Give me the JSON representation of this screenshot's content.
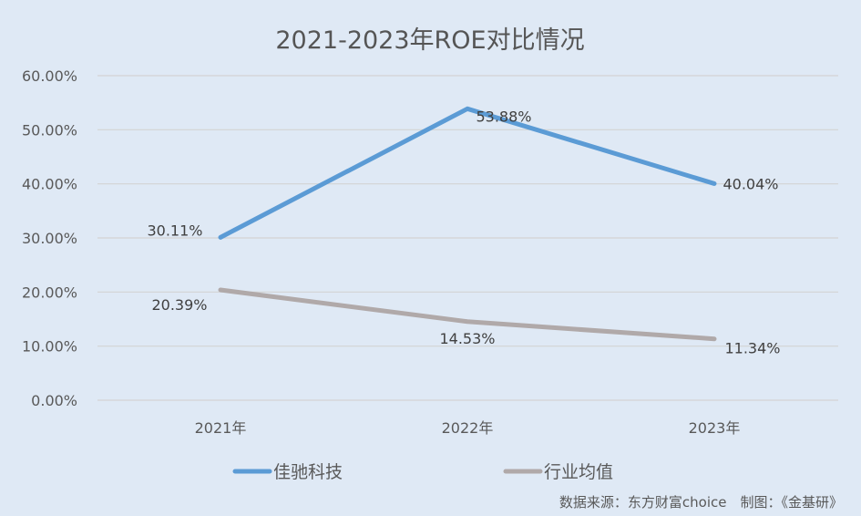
{
  "chart_data": {
    "type": "line",
    "title": "2021-2023年ROE对比情况",
    "categories": [
      "2021年",
      "2022年",
      "2023年"
    ],
    "series": [
      {
        "name": "佳驰科技",
        "values": [
          30.11,
          53.88,
          40.04
        ],
        "labels": [
          "30.11%",
          "53.88%",
          "40.04%"
        ],
        "color": "#5b9bd5"
      },
      {
        "name": "行业均值",
        "values": [
          20.39,
          14.53,
          11.34
        ],
        "labels": [
          "20.39%",
          "14.53%",
          "11.34%"
        ],
        "color": "#b0a9a9"
      }
    ],
    "yticks": [
      "0.00%",
      "10.00%",
      "20.00%",
      "30.00%",
      "40.00%",
      "50.00%",
      "60.00%"
    ],
    "ylim": [
      0,
      60
    ],
    "grid": true,
    "legend": "bottom",
    "xlabel": "",
    "ylabel": ""
  },
  "source": "数据来源：东方财富choice　制图：《金基研》"
}
